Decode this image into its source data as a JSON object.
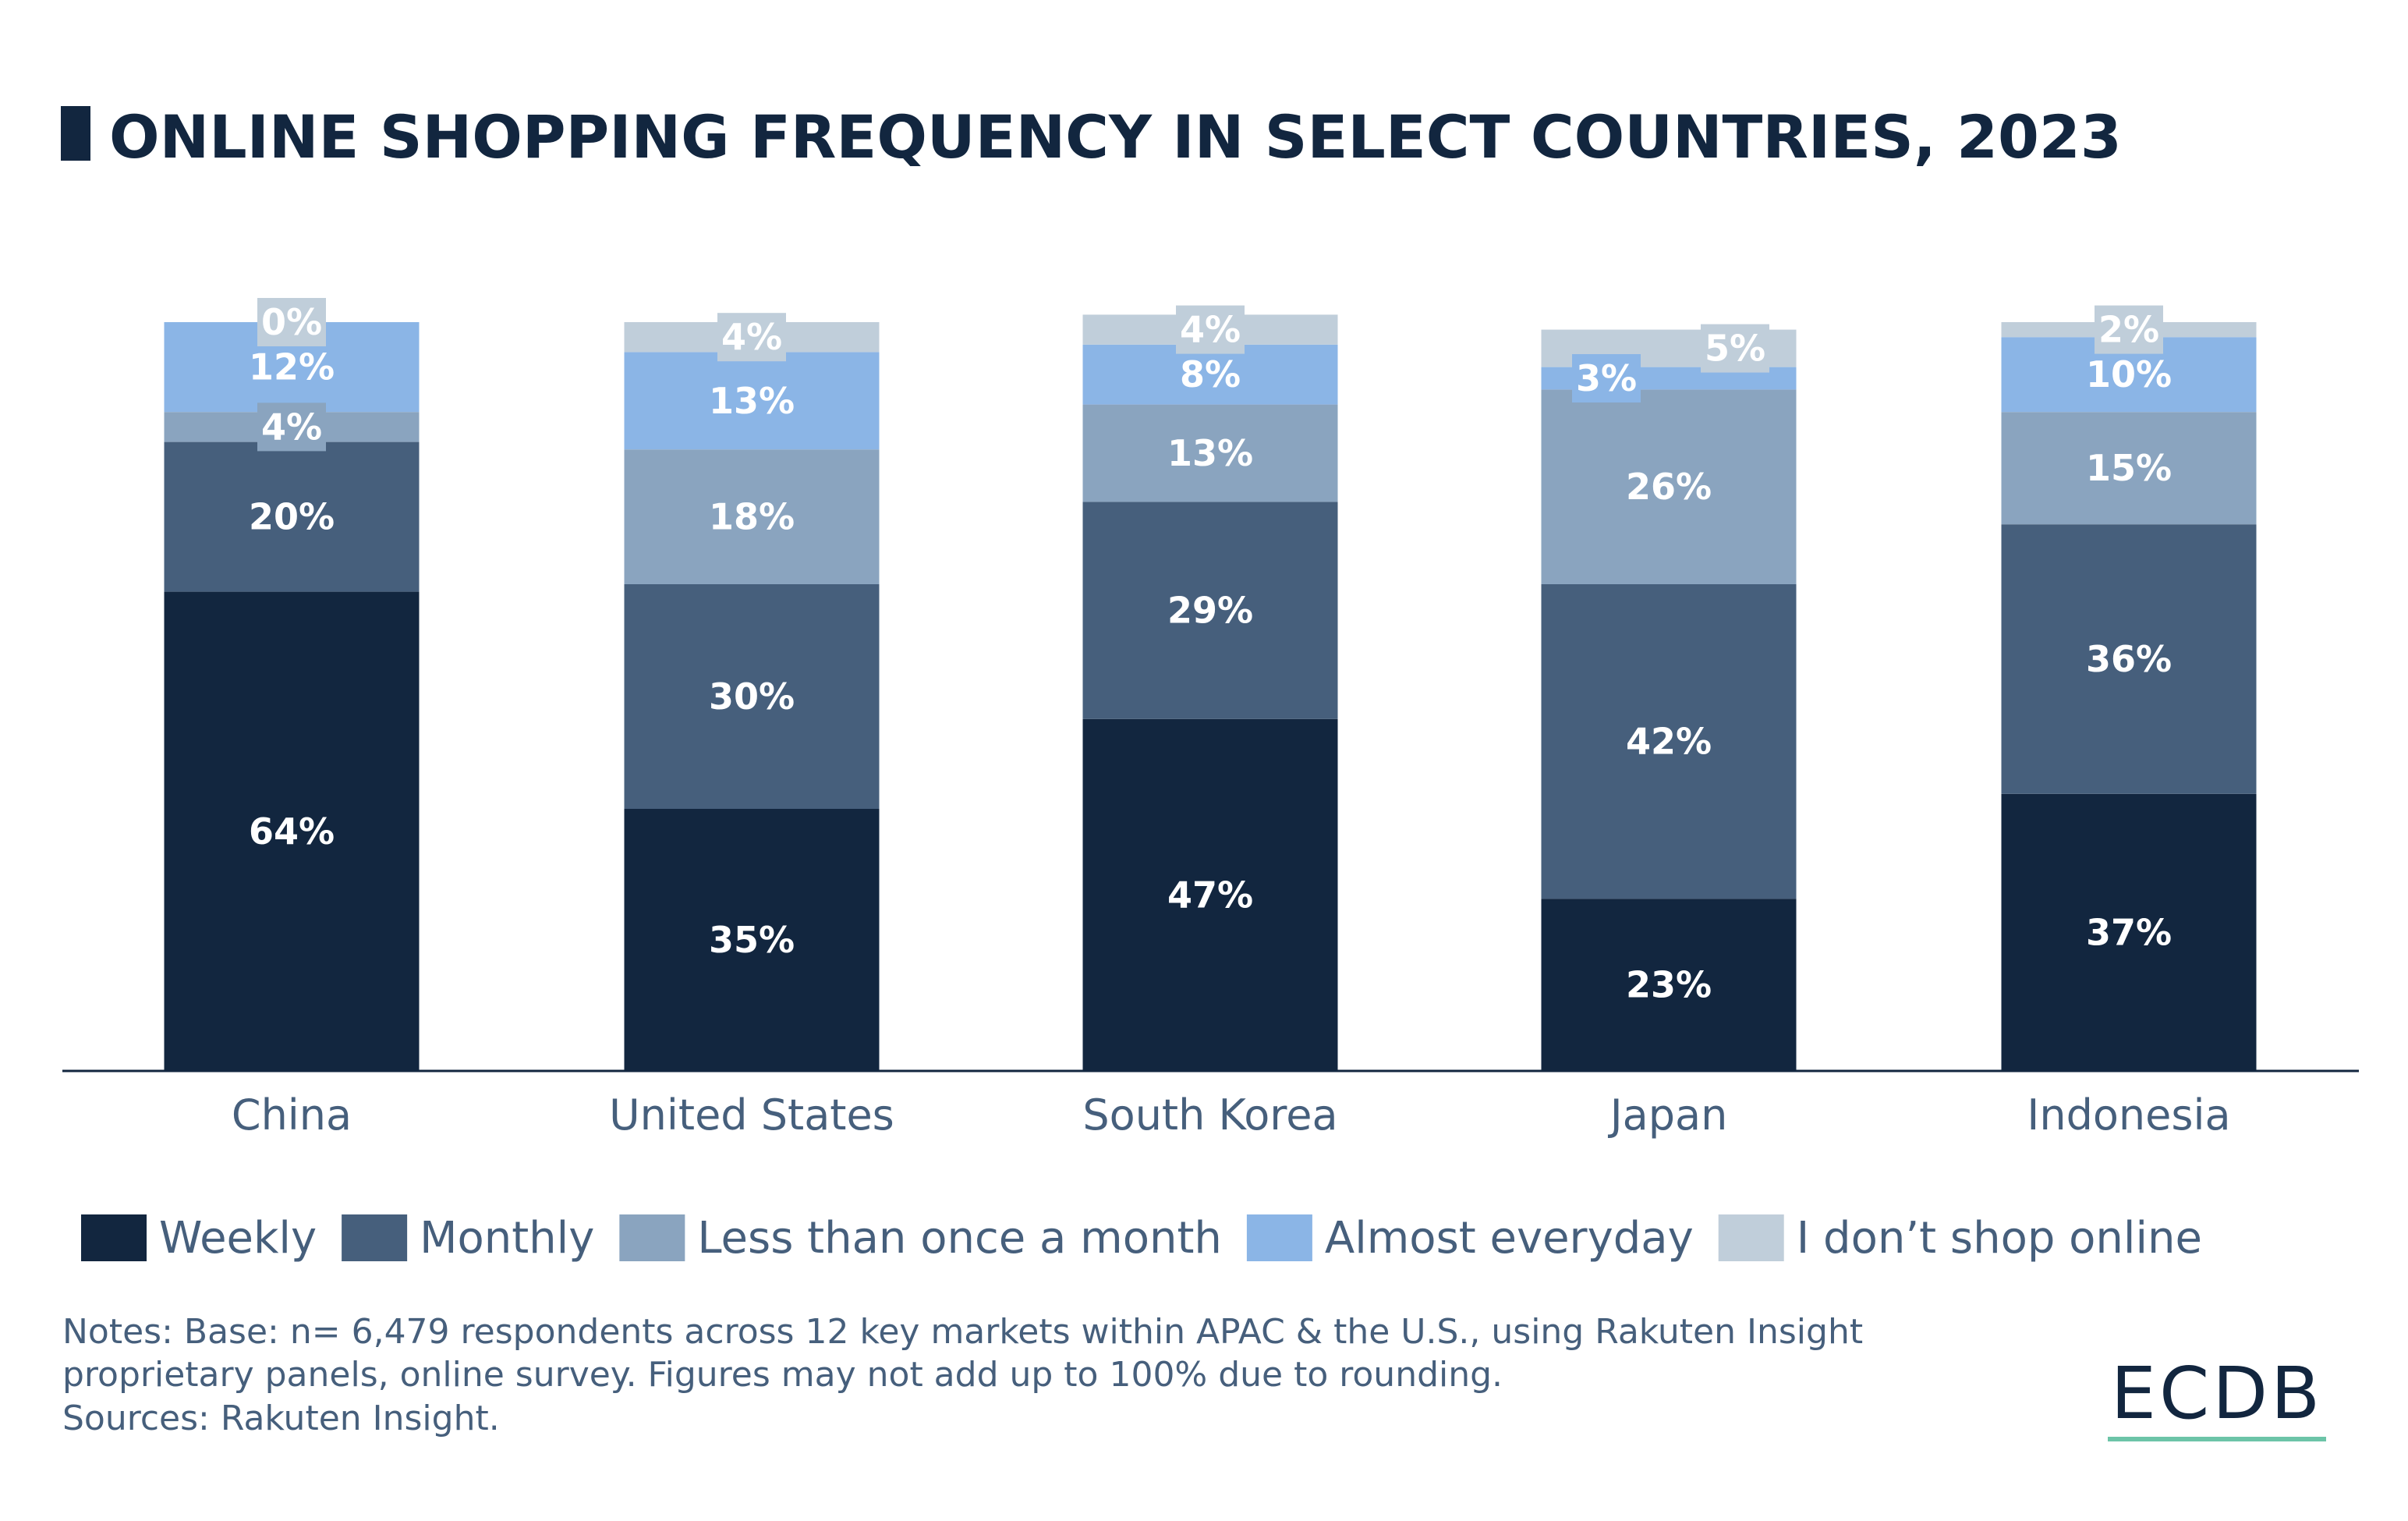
{
  "chart_data": {
    "type": "bar",
    "stacked": true,
    "title": "ONLINE SHOPPING FREQUENCY IN SELECT COUNTRIES, 2023",
    "categories": [
      "China",
      "United States",
      "South Korea",
      "Japan",
      "Indonesia"
    ],
    "series": [
      {
        "name": "Weekly",
        "color": "#12263f",
        "values": [
          64,
          35,
          47,
          23,
          37
        ]
      },
      {
        "name": "Monthly",
        "color": "#465f7c",
        "values": [
          20,
          30,
          29,
          42,
          36
        ]
      },
      {
        "name": "Less than once a month",
        "color": "#8aa4bf",
        "values": [
          4,
          18,
          13,
          26,
          15
        ]
      },
      {
        "name": "Almost everyday",
        "color": "#8bb5e6",
        "values": [
          12,
          13,
          8,
          3,
          10
        ]
      },
      {
        "name": "I don’t shop online",
        "color": "#c0ceda",
        "values": [
          0,
          4,
          4,
          5,
          2
        ]
      }
    ],
    "unit": "%",
    "ylim": [
      0,
      100
    ],
    "grid": false,
    "legend_placement": "bottom"
  },
  "notes": [
    "Notes: Base: n= 6,479 respondents across 12 key markets within APAC & the U.S., using Rakuten Insight",
    "proprietary panels, online survey. Figures may not add up to 100% due to rounding.",
    "Sources: Rakuten Insight."
  ],
  "logo": "ECDB",
  "colors": {
    "title": "#12263f",
    "logo_underline": "#6cc4a8"
  }
}
